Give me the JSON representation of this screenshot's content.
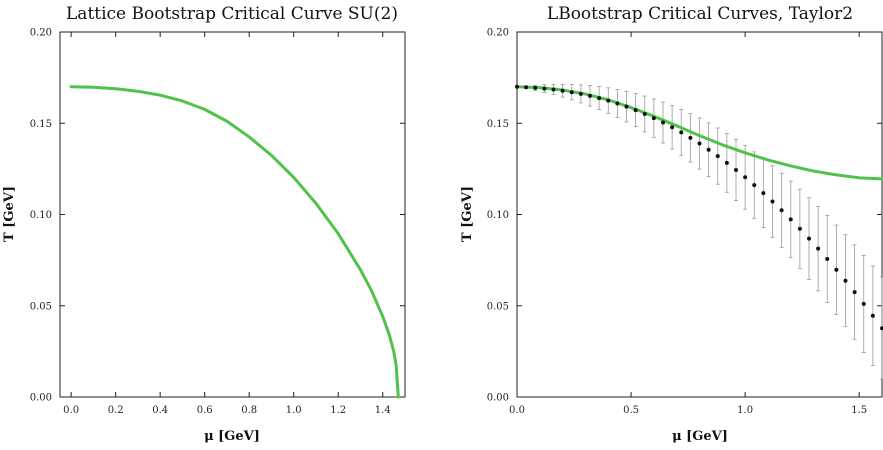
{
  "chart_data": [
    {
      "type": "line",
      "title": "Lattice Bootstrap Critical Curve SU(2)",
      "xlabel": "μ [GeV]",
      "ylabel": "T [GeV]",
      "xlim": [
        -0.05,
        1.5
      ],
      "ylim": [
        0.0,
        0.2
      ],
      "xticks": [
        "0.0",
        "0.2",
        "0.4",
        "0.6",
        "0.8",
        "1.0",
        "1.2",
        "1.4"
      ],
      "xtick_values": [
        0.0,
        0.2,
        0.4,
        0.6,
        0.8,
        1.0,
        1.2,
        1.4
      ],
      "yticks": [
        "0.00",
        "0.05",
        "0.10",
        "0.15",
        "0.20"
      ],
      "ytick_values": [
        0.0,
        0.05,
        0.1,
        0.15,
        0.2
      ],
      "grid": false,
      "colors": {
        "curve": "#4fc24a"
      },
      "series": [
        {
          "x": [
            0.0,
            0.1,
            0.2,
            0.3,
            0.4,
            0.5,
            0.6,
            0.7,
            0.8,
            0.9,
            1.0,
            1.1,
            1.2,
            1.3,
            1.35,
            1.4,
            1.43,
            1.45,
            1.46,
            1.47
          ],
          "y": [
            0.17,
            0.1697,
            0.1689,
            0.1675,
            0.1654,
            0.1622,
            0.1576,
            0.1511,
            0.1425,
            0.1324,
            0.1203,
            0.1061,
            0.0895,
            0.0697,
            0.0582,
            0.0441,
            0.0338,
            0.0246,
            0.0175,
            0.0
          ]
        }
      ]
    },
    {
      "type": "line",
      "title": "LBootstrap Critical Curves, Taylor2",
      "xlabel": "μ [GeV]",
      "ylabel": "T [GeV]",
      "xlim": [
        0.0,
        1.6
      ],
      "ylim": [
        0.0,
        0.2
      ],
      "xticks": [
        "0.0",
        "0.5",
        "1.0",
        "1.5"
      ],
      "xtick_values": [
        0.0,
        0.5,
        1.0,
        1.5
      ],
      "yticks": [
        "0.00",
        "0.05",
        "0.10",
        "0.15",
        "0.20"
      ],
      "ytick_values": [
        0.0,
        0.05,
        0.1,
        0.15,
        0.2
      ],
      "grid": false,
      "colors": {
        "curve": "#4fc24a",
        "points": "#111111",
        "errorbars": "#999999"
      },
      "series": [
        {
          "x": [
            0.0,
            0.1,
            0.2,
            0.3,
            0.4,
            0.5,
            0.6,
            0.7,
            0.8,
            0.9,
            1.0,
            1.1,
            1.2,
            1.3,
            1.4,
            1.5,
            1.6
          ],
          "y": [
            0.17,
            0.1695,
            0.1682,
            0.166,
            0.1628,
            0.1586,
            0.1538,
            0.1486,
            0.1432,
            0.1382,
            0.1338,
            0.1299,
            0.1266,
            0.1238,
            0.1217,
            0.1201,
            0.1195
          ]
        }
      ],
      "points": {
        "x": [
          0.0,
          0.04,
          0.08,
          0.12,
          0.16,
          0.2,
          0.24,
          0.28,
          0.32,
          0.36,
          0.4,
          0.44,
          0.48,
          0.52,
          0.56,
          0.6,
          0.64,
          0.68,
          0.72,
          0.76,
          0.8,
          0.84,
          0.88,
          0.92,
          0.96,
          1.0,
          1.04,
          1.08,
          1.12,
          1.16,
          1.2,
          1.24,
          1.28,
          1.32,
          1.36,
          1.4,
          1.44,
          1.48,
          1.52,
          1.56,
          1.6
        ],
        "y": [
          0.17,
          0.1697,
          0.1694,
          0.169,
          0.1685,
          0.1678,
          0.167,
          0.1661,
          0.165,
          0.1638,
          0.1624,
          0.1608,
          0.1591,
          0.1572,
          0.1551,
          0.1528,
          0.1504,
          0.1478,
          0.145,
          0.142,
          0.1389,
          0.1355,
          0.132,
          0.1283,
          0.1244,
          0.1204,
          0.1161,
          0.1117,
          0.1071,
          0.1023,
          0.0973,
          0.0922,
          0.0868,
          0.0813,
          0.0756,
          0.0697,
          0.0637,
          0.0575,
          0.051,
          0.0445,
          0.0377
        ],
        "err": [
          0.0,
          0.0007,
          0.0014,
          0.0021,
          0.0028,
          0.0035,
          0.0042,
          0.0049,
          0.0056,
          0.0063,
          0.007,
          0.0077,
          0.0084,
          0.0091,
          0.0098,
          0.0105,
          0.0112,
          0.0119,
          0.0126,
          0.0133,
          0.014,
          0.0147,
          0.0154,
          0.0161,
          0.0168,
          0.0175,
          0.0182,
          0.0189,
          0.0196,
          0.0203,
          0.021,
          0.0217,
          0.0224,
          0.0231,
          0.0238,
          0.0245,
          0.0252,
          0.0259,
          0.0266,
          0.0273,
          0.028
        ]
      }
    }
  ]
}
